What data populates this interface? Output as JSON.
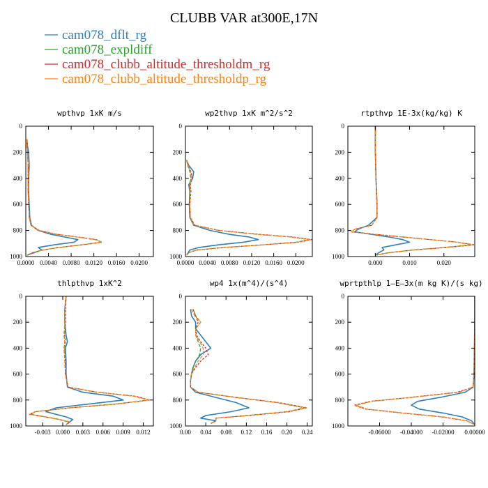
{
  "title": "CLUBB VAR at300E,17N",
  "legend": [
    {
      "label": "cam078_dflt_rg",
      "color": "#2f7ebc"
    },
    {
      "label": "cam078_expldiff",
      "color": "#2ca02c"
    },
    {
      "label": "cam078_clubb_altitude_thresholdm_rg",
      "color": "#d62728"
    },
    {
      "label": "cam078_clubb_altitude_thresholdp_rg",
      "color": "#ff7f0e"
    }
  ],
  "chart_data": [
    {
      "type": "line",
      "title": "wpthvp   1xK m/s",
      "xlim": [
        0.0,
        0.0225
      ],
      "ylim": [
        1000,
        0
      ],
      "x_ticks": [
        "0.0000",
        "0.0040",
        "0.0080",
        "0.0120",
        "0.0160",
        "0.0200"
      ],
      "x_tick_values": [
        0.0,
        0.004,
        0.008,
        0.012,
        0.016,
        0.02
      ],
      "y_ticks": [
        "0",
        "200",
        "400",
        "600",
        "800",
        "1000"
      ],
      "y_tick_values": [
        0,
        200,
        400,
        600,
        800,
        1000
      ],
      "levels": [
        100,
        150,
        200,
        300,
        400,
        500,
        600,
        700,
        760,
        800,
        830,
        850,
        870,
        890,
        910,
        930,
        950,
        970,
        990
      ],
      "series": [
        {
          "name": "cam078_dflt_rg",
          "x": [
            0.0002,
            0.0003,
            0.0005,
            0.0006,
            0.0005,
            0.0005,
            0.0006,
            0.0007,
            0.001,
            0.0022,
            0.0045,
            0.0068,
            0.0092,
            0.0085,
            0.005,
            0.0022,
            0.0028,
            0.0015,
            0.0002
          ]
        },
        {
          "name": "cam078_expldiff",
          "x": [
            0.0002,
            0.0002,
            0.0003,
            0.0004,
            0.0004,
            0.0004,
            0.0005,
            0.0006,
            0.0009,
            0.0023,
            0.0055,
            0.009,
            0.0122,
            0.0135,
            0.01,
            0.006,
            0.003,
            0.0012,
            0.0002
          ]
        },
        {
          "name": "cam078_clubb_altitude_thresholdm_rg",
          "x": [
            0.0002,
            0.0002,
            0.0003,
            0.0004,
            0.0004,
            0.0004,
            0.0005,
            0.0006,
            0.0009,
            0.0024,
            0.0056,
            0.0092,
            0.0125,
            0.0132,
            0.0098,
            0.0058,
            0.003,
            0.0012,
            0.0002
          ]
        },
        {
          "name": "cam078_clubb_altitude_thresholdp_rg",
          "x": [
            0.0002,
            0.0002,
            0.0003,
            0.0004,
            0.0004,
            0.0004,
            0.0005,
            0.0006,
            0.0009,
            0.0023,
            0.0055,
            0.0091,
            0.0123,
            0.0133,
            0.0099,
            0.0059,
            0.003,
            0.0012,
            0.0002
          ]
        }
      ]
    },
    {
      "type": "line",
      "title": "wp2thvp   1xK m^2/s^2",
      "xlim": [
        0.0,
        0.023
      ],
      "ylim": [
        1000,
        0
      ],
      "x_ticks": [
        "0.0000",
        "0.0040",
        "0.0080",
        "0.0120",
        "0.0160",
        "0.0200"
      ],
      "x_tick_values": [
        0.0,
        0.004,
        0.008,
        0.012,
        0.016,
        0.02
      ],
      "y_ticks": [
        "0",
        "200",
        "400",
        "600",
        "800",
        "1000"
      ],
      "y_tick_values": [
        0,
        200,
        400,
        600,
        800,
        1000
      ],
      "levels": [
        260,
        300,
        350,
        400,
        450,
        500,
        600,
        700,
        760,
        800,
        830,
        850,
        870,
        890,
        910,
        930,
        950,
        970,
        990
      ],
      "series": [
        {
          "name": "cam078_dflt_rg",
          "x": [
            0.0002,
            0.0006,
            0.0015,
            0.0013,
            0.0006,
            0.0008,
            0.0007,
            0.0008,
            0.0015,
            0.0045,
            0.008,
            0.0115,
            0.0132,
            0.0105,
            0.006,
            0.0025,
            0.0008,
            0.0005,
            0.0002
          ]
        },
        {
          "name": "cam078_expldiff",
          "x": [
            0.0002,
            0.0004,
            0.0008,
            0.001,
            0.0007,
            0.0008,
            0.0007,
            0.0008,
            0.0016,
            0.006,
            0.013,
            0.019,
            0.0225,
            0.02,
            0.014,
            0.007,
            0.002,
            0.0006,
            0.0002
          ]
        },
        {
          "name": "cam078_clubb_altitude_thresholdm_rg",
          "x": [
            0.0002,
            0.0005,
            0.001,
            0.0012,
            0.0009,
            0.001,
            0.0008,
            0.0009,
            0.0017,
            0.0062,
            0.0135,
            0.0195,
            0.0229,
            0.0205,
            0.0142,
            0.0072,
            0.0021,
            0.0006,
            0.0002
          ]
        },
        {
          "name": "cam078_clubb_altitude_thresholdp_rg",
          "x": [
            0.0002,
            0.0005,
            0.0009,
            0.0011,
            0.0008,
            0.0009,
            0.0008,
            0.0009,
            0.0016,
            0.0061,
            0.0132,
            0.0192,
            0.0226,
            0.0202,
            0.0141,
            0.0071,
            0.002,
            0.0006,
            0.0002
          ]
        }
      ]
    },
    {
      "type": "line",
      "title": "rtpthvp   1E-3x(kg/kg) K",
      "xlim": [
        -0.008,
        0.029
      ],
      "ylim": [
        1000,
        0
      ],
      "x_ticks": [
        "0.000",
        "0.010",
        "0.020"
      ],
      "x_tick_values": [
        0.0,
        0.01,
        0.02
      ],
      "y_ticks": [
        "0",
        "200",
        "400",
        "600",
        "800",
        "1000"
      ],
      "y_tick_values": [
        0,
        200,
        400,
        600,
        800,
        1000
      ],
      "levels": [
        0,
        200,
        400,
        600,
        700,
        760,
        790,
        810,
        830,
        850,
        870,
        890,
        910,
        930,
        950,
        970,
        990
      ],
      "series": [
        {
          "name": "cam078_dflt_rg",
          "x": [
            0.0,
            0.0,
            0.0002,
            0.0005,
            0.0005,
            -0.002,
            -0.005,
            -0.006,
            -0.001,
            0.004,
            0.008,
            0.01,
            0.006,
            0.002,
            0.0025,
            0.001,
            0.0
          ]
        },
        {
          "name": "cam078_expldiff",
          "x": [
            0.0,
            0.0,
            0.0002,
            0.0005,
            0.0005,
            -0.001,
            -0.006,
            -0.007,
            0.0,
            0.008,
            0.016,
            0.024,
            0.028,
            0.02,
            0.011,
            0.004,
            0.0
          ]
        },
        {
          "name": "cam078_clubb_altitude_thresholdm_rg",
          "x": [
            0.0,
            0.0,
            0.0002,
            0.0005,
            0.0005,
            -0.001,
            -0.006,
            -0.007,
            0.0,
            0.008,
            0.016,
            0.024,
            0.029,
            0.021,
            0.011,
            0.004,
            0.0
          ]
        },
        {
          "name": "cam078_clubb_altitude_thresholdp_rg",
          "x": [
            0.0,
            0.0,
            0.0002,
            0.0005,
            0.0005,
            -0.001,
            -0.006,
            -0.007,
            0.0,
            0.008,
            0.016,
            0.024,
            0.0285,
            0.0205,
            0.011,
            0.004,
            0.0
          ]
        }
      ]
    },
    {
      "type": "line",
      "title": "thlpthvp   1xK^2",
      "xlim": [
        -0.0055,
        0.0135
      ],
      "ylim": [
        1000,
        0
      ],
      "x_ticks": [
        "-0.003",
        "0.000",
        "0.003",
        "0.006",
        "0.009",
        "0.012"
      ],
      "x_tick_values": [
        -0.003,
        0.0,
        0.003,
        0.006,
        0.009,
        0.012
      ],
      "y_ticks": [
        "0",
        "200",
        "400",
        "600",
        "800",
        "1000"
      ],
      "y_tick_values": [
        0,
        200,
        400,
        600,
        800,
        1000
      ],
      "levels": [
        0,
        100,
        200,
        300,
        350,
        400,
        500,
        600,
        700,
        740,
        770,
        800,
        830,
        860,
        890,
        910,
        930,
        950,
        970,
        990
      ],
      "series": [
        {
          "name": "cam078_dflt_rg",
          "x": [
            0.0005,
            0.0003,
            0.0003,
            0.0005,
            0.0007,
            0.0004,
            0.0005,
            0.0005,
            0.0007,
            0.003,
            0.0075,
            0.009,
            0.004,
            -0.001,
            -0.0025,
            -0.001,
            0.0005,
            0.0015,
            0.001,
            0.0005
          ]
        },
        {
          "name": "cam078_expldiff",
          "x": [
            0.0005,
            0.0003,
            0.0003,
            0.0002,
            0.0003,
            0.0002,
            0.0003,
            0.0004,
            0.0008,
            0.005,
            0.0105,
            0.0128,
            0.008,
            0.001,
            -0.004,
            -0.0048,
            -0.0025,
            -0.0005,
            0.001,
            0.0005
          ]
        },
        {
          "name": "cam078_clubb_altitude_thresholdm_rg",
          "x": [
            0.0005,
            0.0004,
            0.0004,
            0.0003,
            0.0004,
            0.0003,
            0.0004,
            0.0004,
            0.0008,
            0.0052,
            0.0108,
            0.013,
            0.0082,
            0.0011,
            -0.0041,
            -0.005,
            -0.0026,
            -0.0005,
            0.0011,
            0.0005
          ]
        },
        {
          "name": "cam078_clubb_altitude_thresholdp_rg",
          "x": [
            0.0005,
            0.0003,
            0.0003,
            0.0003,
            0.0003,
            0.0003,
            0.0003,
            0.0004,
            0.0008,
            0.0051,
            0.0106,
            0.0129,
            0.0081,
            0.001,
            -0.004,
            -0.0049,
            -0.0025,
            -0.0005,
            0.001,
            0.0005
          ]
        }
      ]
    },
    {
      "type": "line",
      "title": "wp4   1x(m^4)/(s^4)",
      "xlim": [
        0.0,
        0.25
      ],
      "ylim": [
        1000,
        0
      ],
      "x_ticks": [
        "0.00",
        "0.04",
        "0.08",
        "0.12",
        "0.16",
        "0.20",
        "0.24"
      ],
      "x_tick_values": [
        0.0,
        0.04,
        0.08,
        0.12,
        0.16,
        0.2,
        0.24
      ],
      "y_ticks": [
        "0",
        "200",
        "400",
        "600",
        "800",
        "1000"
      ],
      "y_tick_values": [
        0,
        200,
        400,
        600,
        800,
        1000
      ],
      "levels": [
        100,
        150,
        200,
        250,
        300,
        350,
        400,
        450,
        500,
        550,
        600,
        650,
        700,
        740,
        780,
        820,
        860,
        890,
        920,
        940,
        960,
        980
      ],
      "series": [
        {
          "name": "cam078_dflt_rg",
          "x": [
            0.01,
            0.012,
            0.02,
            0.02,
            0.03,
            0.04,
            0.05,
            0.03,
            0.02,
            0.015,
            0.012,
            0.01,
            0.01,
            0.02,
            0.06,
            0.1,
            0.125,
            0.09,
            0.04,
            0.03,
            0.06,
            0.05
          ]
        },
        {
          "name": "cam078_expldiff",
          "x": [
            0.015,
            0.02,
            0.03,
            0.02,
            0.02,
            0.025,
            0.03,
            0.028,
            0.02,
            0.015,
            0.012,
            0.01,
            0.01,
            0.025,
            0.1,
            0.18,
            0.235,
            0.2,
            0.12,
            0.06,
            0.06,
            0.05
          ]
        },
        {
          "name": "cam078_clubb_altitude_thresholdm_rg",
          "x": [
            0.015,
            0.02,
            0.025,
            0.02,
            0.022,
            0.03,
            0.04,
            0.045,
            0.03,
            0.02,
            0.012,
            0.01,
            0.01,
            0.025,
            0.1,
            0.185,
            0.24,
            0.205,
            0.125,
            0.06,
            0.06,
            0.05
          ]
        },
        {
          "name": "cam078_clubb_altitude_thresholdp_rg",
          "x": [
            0.012,
            0.018,
            0.03,
            0.02,
            0.02,
            0.028,
            0.035,
            0.035,
            0.025,
            0.018,
            0.012,
            0.01,
            0.01,
            0.025,
            0.1,
            0.182,
            0.238,
            0.202,
            0.122,
            0.06,
            0.06,
            0.05
          ]
        }
      ]
    },
    {
      "type": "line",
      "title": "wprtpthlp   1–E–3x(m kg K)/(s kg)",
      "xlim": [
        -0.08,
        0.0
      ],
      "ylim": [
        1000,
        0
      ],
      "x_ticks": [
        "-0.06000",
        "-0.04000",
        "-0.02000",
        "0.00000"
      ],
      "x_tick_values": [
        -0.06,
        -0.04,
        -0.02,
        0.0
      ],
      "y_ticks": [
        "0",
        "200",
        "400",
        "600",
        "800",
        "1000"
      ],
      "y_tick_values": [
        0,
        200,
        400,
        600,
        800,
        1000
      ],
      "levels": [
        0,
        200,
        400,
        600,
        700,
        740,
        780,
        810,
        840,
        870,
        900,
        930,
        960,
        990
      ],
      "series": [
        {
          "name": "cam078_dflt_rg",
          "x": [
            0.0,
            0.0,
            -0.0002,
            -0.0005,
            -0.001,
            -0.006,
            -0.022,
            -0.036,
            -0.04,
            -0.035,
            -0.02,
            -0.008,
            -0.002,
            0.0
          ]
        },
        {
          "name": "cam078_expldiff",
          "x": [
            0.0,
            0.0,
            -0.0002,
            -0.0005,
            -0.001,
            -0.01,
            -0.04,
            -0.065,
            -0.075,
            -0.068,
            -0.045,
            -0.02,
            -0.005,
            0.0
          ]
        },
        {
          "name": "cam078_clubb_altitude_thresholdm_rg",
          "x": [
            0.0,
            0.0,
            -0.0002,
            -0.0005,
            -0.001,
            -0.011,
            -0.041,
            -0.066,
            -0.076,
            -0.069,
            -0.046,
            -0.021,
            -0.005,
            0.0
          ]
        },
        {
          "name": "cam078_clubb_altitude_thresholdp_rg",
          "x": [
            0.0,
            0.0,
            -0.0002,
            -0.0005,
            -0.001,
            -0.01,
            -0.04,
            -0.065,
            -0.075,
            -0.068,
            -0.045,
            -0.02,
            -0.005,
            0.0
          ]
        }
      ]
    }
  ]
}
